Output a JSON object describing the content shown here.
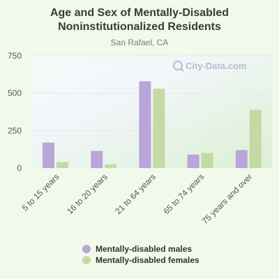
{
  "chart_data": {
    "type": "bar",
    "title_line1": "Age and Sex of Mentally-Disabled",
    "title_line2": "Noninstitutionalized Residents",
    "subtitle": "San Rafael, CA",
    "categories": [
      "5 to 15 years",
      "16 to 20 years",
      "21 to 64 years",
      "65 to 74 years",
      "75 years and over"
    ],
    "series": [
      {
        "name": "Mentally-disabled males",
        "color": "#b9a5d9",
        "values": [
          170,
          115,
          580,
          90,
          120
        ]
      },
      {
        "name": "Mentally-disabled females",
        "color": "#c6d9a5",
        "values": [
          40,
          25,
          530,
          100,
          390
        ]
      }
    ],
    "yticks": [
      0,
      250,
      500,
      750
    ],
    "ylim": [
      0,
      750
    ],
    "grid": true,
    "legend_position": "bottom",
    "watermark": "City-Data.com"
  }
}
